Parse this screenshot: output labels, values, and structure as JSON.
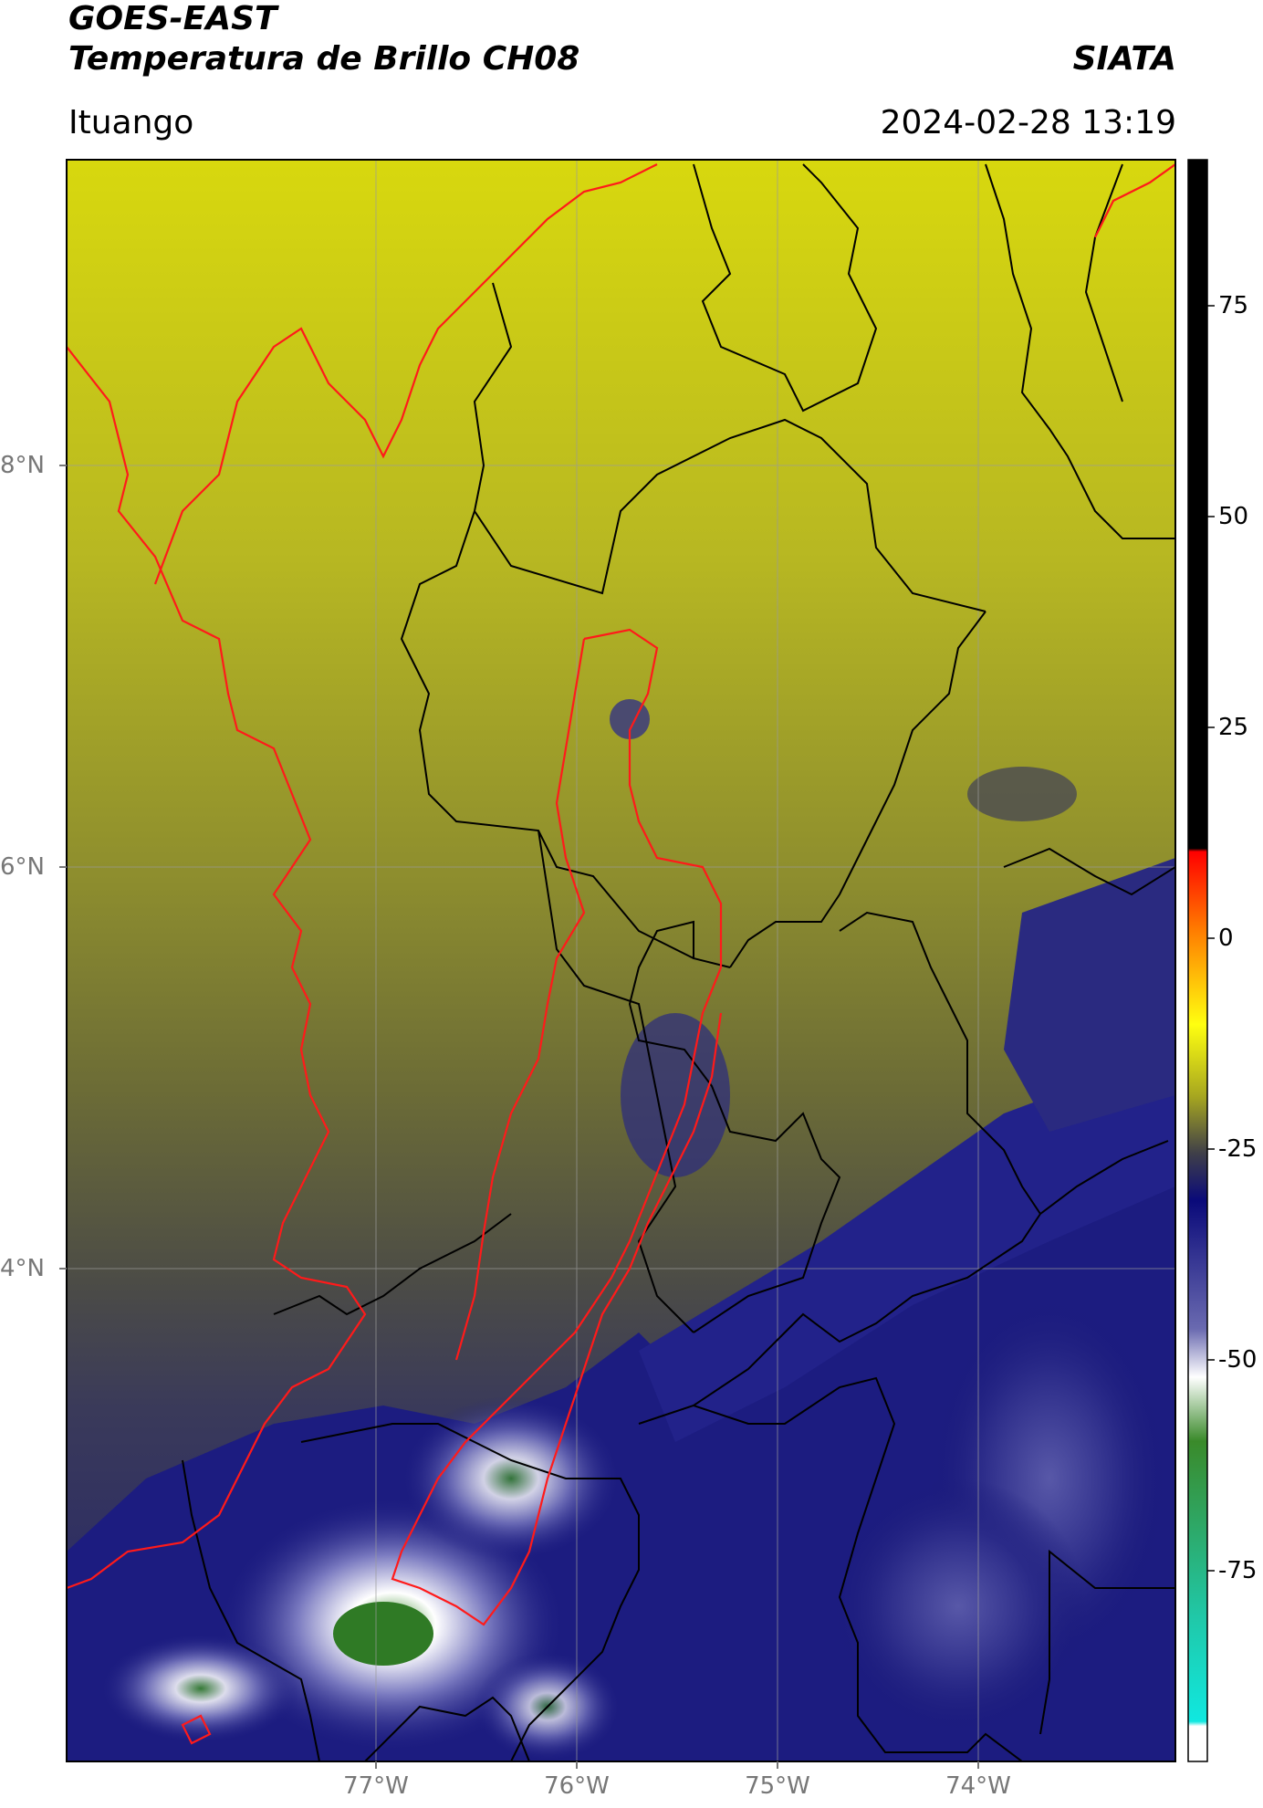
{
  "header": {
    "satellite": "GOES-EAST",
    "product": "Temperatura de Brillo CH08",
    "brand": "SIATA",
    "region": "Ituango",
    "datetime": "2024-02-28 13:19"
  },
  "map": {
    "lat_labels": [
      "8°N",
      "6°N",
      "4°N"
    ],
    "lon_labels": [
      "77°W",
      "76°W",
      "75°W",
      "74°W"
    ],
    "border_colors": {
      "internal": "#000000",
      "highlight": "#ff1a1a"
    },
    "gridline_color": "#9a9a9a"
  },
  "colorbar": {
    "ticks": [
      "75",
      "50",
      "25",
      "0",
      "-25",
      "-50",
      "-75"
    ],
    "stops": [
      "#000000",
      "#000000",
      "#ff0000",
      "#ff8000",
      "#ffff00",
      "#a9a91e",
      "#3f3f4a",
      "#0a0a7a",
      "#5a5aa8",
      "#ffffff",
      "#3a8a2a",
      "#10e0d0",
      "#ffffff"
    ]
  }
}
